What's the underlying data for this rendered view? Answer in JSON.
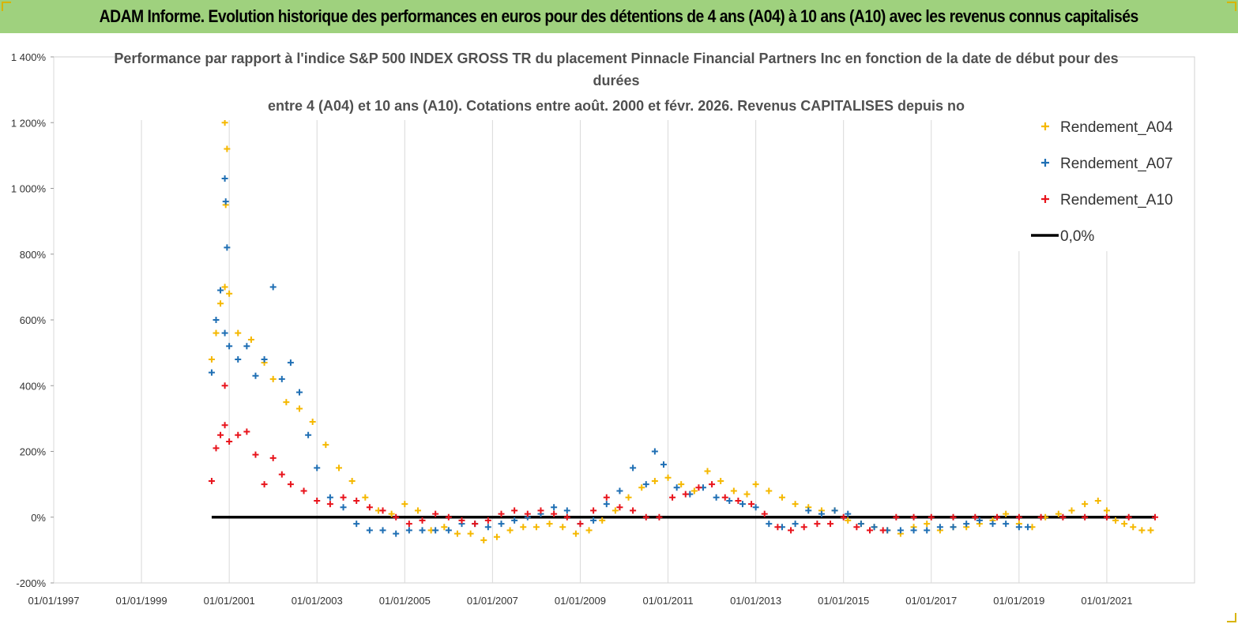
{
  "header": {
    "title": "ADAM Informe. Evolution historique des performances en euros pour des détentions de 4 ans (A04) à 10 ans (A10) avec les revenus connus capitalisés"
  },
  "colors": {
    "banner": "#9fd17e",
    "a04": "#f5b800",
    "a07": "#1f6fb4",
    "a10": "#e8141c",
    "zero": "#000000",
    "grid": "#d9d9d9"
  },
  "chart_data": {
    "type": "scatter",
    "title_lines": [
      "Performance par rapport à l'indice S&P 500 INDEX GROSS TR  du placement Pinnacle Financial Partners Inc en fonction de la date de début pour des",
      "durées",
      "entre 4 (A04) et 10 ans (A10). Cotations entre août. 2000 et févr. 2026. Revenus CAPITALISES depuis no"
    ],
    "xlabel": "",
    "ylabel": "",
    "x_range": [
      1997.0,
      2023.0
    ],
    "ylim": [
      -200,
      1400
    ],
    "y_ticks": [
      -200,
      0,
      200,
      400,
      600,
      800,
      1000,
      1200,
      1400
    ],
    "y_tick_labels": [
      "-200%",
      "0%",
      "200%",
      "400%",
      "600%",
      "800%",
      "1 000%",
      "1 200%",
      "1 400%"
    ],
    "x_ticks": [
      1997,
      1999,
      2001,
      2003,
      2005,
      2007,
      2009,
      2011,
      2013,
      2015,
      2017,
      2019,
      2021
    ],
    "x_tick_labels": [
      "01/01/1997",
      "01/01/1999",
      "01/01/2001",
      "01/01/2003",
      "01/01/2005",
      "01/01/2007",
      "01/01/2009",
      "01/01/2011",
      "01/01/2013",
      "01/01/2015",
      "01/01/2017",
      "01/01/2019",
      "01/01/2021"
    ],
    "legend_position": "top-right",
    "zero_line": {
      "name": "0,0%",
      "x": [
        2000.6,
        2022.1
      ],
      "y": 0
    },
    "series": [
      {
        "name": "Rendement_A04",
        "color": "#f5b800",
        "x": [
          2000.6,
          2000.7,
          2000.8,
          2000.9,
          2001.0,
          2001.2,
          2001.5,
          2001.8,
          2002.0,
          2002.3,
          2002.6,
          2002.9,
          2003.2,
          2003.5,
          2003.8,
          2004.1,
          2004.4,
          2004.7,
          2005.0,
          2005.3,
          2005.6,
          2005.9,
          2006.2,
          2006.5,
          2006.8,
          2007.1,
          2007.4,
          2007.7,
          2008.0,
          2008.3,
          2008.6,
          2008.9,
          2009.2,
          2009.5,
          2009.8,
          2010.1,
          2010.4,
          2010.7,
          2011.0,
          2011.3,
          2011.6,
          2011.9,
          2012.2,
          2012.5,
          2012.8,
          2013.0,
          2013.3,
          2013.6,
          2013.9,
          2014.2,
          2014.5,
          2014.8,
          2015.1,
          2015.4,
          2015.7,
          2016.0,
          2016.3,
          2016.6,
          2016.9,
          2017.2,
          2017.5,
          2017.8,
          2018.1,
          2018.4,
          2018.7,
          2019.0,
          2019.3,
          2019.6,
          2019.9,
          2020.2,
          2020.5,
          2020.8,
          2021.0,
          2021.2,
          2021.4,
          2021.6,
          2021.8,
          2022.0,
          2000.9,
          2000.95,
          2000.92
        ],
        "values": [
          480,
          560,
          650,
          700,
          680,
          560,
          540,
          470,
          420,
          350,
          330,
          290,
          220,
          150,
          110,
          60,
          20,
          10,
          40,
          20,
          -40,
          -30,
          -50,
          -50,
          -70,
          -60,
          -40,
          -30,
          -30,
          -20,
          -30,
          -50,
          -40,
          -10,
          20,
          60,
          90,
          110,
          120,
          100,
          80,
          140,
          110,
          80,
          70,
          100,
          80,
          60,
          40,
          30,
          20,
          20,
          -10,
          -20,
          -30,
          -40,
          -50,
          -30,
          -20,
          -40,
          -30,
          -30,
          -20,
          -10,
          10,
          -20,
          -30,
          0,
          10,
          20,
          40,
          50,
          20,
          -10,
          -20,
          -30,
          -40,
          -40,
          1200,
          1120,
          950
        ]
      },
      {
        "name": "Rendement_A07",
        "color": "#1f6fb4",
        "x": [
          2000.6,
          2000.7,
          2000.8,
          2000.9,
          2001.0,
          2001.2,
          2001.4,
          2001.6,
          2001.8,
          2002.0,
          2002.2,
          2002.4,
          2002.6,
          2002.8,
          2003.0,
          2003.3,
          2003.6,
          2003.9,
          2004.2,
          2004.5,
          2004.8,
          2005.1,
          2005.4,
          2005.7,
          2006.0,
          2006.3,
          2006.6,
          2006.9,
          2007.2,
          2007.5,
          2007.8,
          2008.1,
          2008.4,
          2008.7,
          2009.0,
          2009.3,
          2009.6,
          2009.9,
          2010.2,
          2010.5,
          2010.7,
          2010.9,
          2011.2,
          2011.5,
          2011.8,
          2012.1,
          2012.4,
          2012.7,
          2013.0,
          2013.3,
          2013.6,
          2013.9,
          2014.2,
          2014.5,
          2014.8,
          2015.1,
          2015.4,
          2015.7,
          2016.0,
          2016.3,
          2016.6,
          2016.9,
          2017.2,
          2017.5,
          2017.8,
          2018.1,
          2018.4,
          2018.7,
          2019.0,
          2019.2,
          2000.9,
          2000.95,
          2000.92
        ],
        "values": [
          440,
          600,
          690,
          560,
          520,
          480,
          520,
          430,
          480,
          700,
          420,
          470,
          380,
          250,
          150,
          60,
          30,
          -20,
          -40,
          -40,
          -50,
          -40,
          -40,
          -40,
          -40,
          -20,
          -20,
          -30,
          -20,
          -10,
          0,
          10,
          30,
          20,
          -20,
          -10,
          40,
          80,
          150,
          100,
          200,
          160,
          90,
          70,
          90,
          60,
          50,
          40,
          30,
          -20,
          -30,
          -20,
          20,
          10,
          20,
          10,
          -20,
          -30,
          -40,
          -40,
          -40,
          -40,
          -30,
          -30,
          -20,
          -10,
          -20,
          -20,
          -30,
          -30,
          1030,
          820,
          960
        ]
      },
      {
        "name": "Rendement_A10",
        "color": "#e8141c",
        "x": [
          2000.6,
          2000.7,
          2000.8,
          2000.9,
          2001.0,
          2001.2,
          2001.4,
          2001.6,
          2001.8,
          2002.0,
          2002.2,
          2002.4,
          2002.7,
          2003.0,
          2003.3,
          2003.6,
          2003.9,
          2004.2,
          2004.5,
          2004.8,
          2005.1,
          2005.4,
          2005.7,
          2006.0,
          2006.3,
          2006.6,
          2006.9,
          2007.2,
          2007.5,
          2007.8,
          2008.1,
          2008.4,
          2008.7,
          2009.0,
          2009.3,
          2009.6,
          2009.9,
          2010.2,
          2010.5,
          2010.8,
          2011.1,
          2011.4,
          2011.7,
          2012.0,
          2012.3,
          2012.6,
          2012.9,
          2013.2,
          2013.5,
          2013.8,
          2014.1,
          2014.4,
          2014.7,
          2015.0,
          2015.3,
          2015.6,
          2015.9,
          2016.2,
          2016.6,
          2017.0,
          2017.5,
          2018.0,
          2018.5,
          2019.0,
          2019.5,
          2020.0,
          2020.5,
          2021.0,
          2021.5,
          2022.1,
          2000.9
        ],
        "values": [
          110,
          210,
          250,
          280,
          230,
          250,
          260,
          190,
          100,
          180,
          130,
          100,
          80,
          50,
          40,
          60,
          50,
          30,
          20,
          0,
          -20,
          -10,
          10,
          0,
          -10,
          -20,
          -10,
          10,
          20,
          10,
          20,
          10,
          0,
          -20,
          20,
          60,
          30,
          20,
          0,
          0,
          60,
          70,
          90,
          100,
          60,
          50,
          40,
          10,
          -30,
          -40,
          -30,
          -20,
          -20,
          0,
          -30,
          -40,
          -40,
          0,
          0,
          0,
          0,
          0,
          0,
          0,
          0,
          0,
          0,
          0,
          0,
          0,
          400
        ]
      }
    ]
  }
}
